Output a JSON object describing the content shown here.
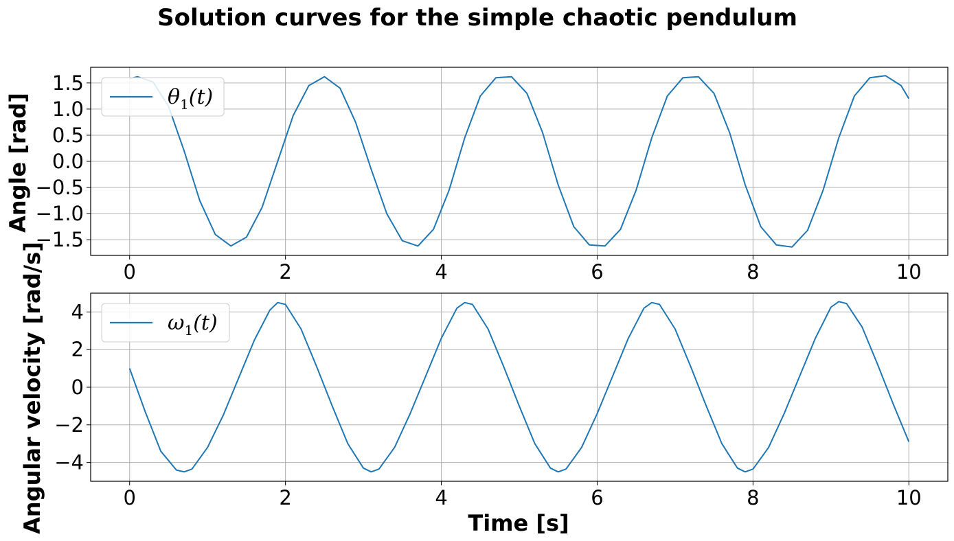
{
  "title": "Solution curves for the simple chaotic pendulum",
  "colors": {
    "line": "#1f77b4",
    "grid": "#b0b0b0"
  },
  "chart_data": [
    {
      "type": "line",
      "ylabel": "Angle [rad]",
      "xlabel": "",
      "xlim": [
        -0.5,
        10.5
      ],
      "ylim": [
        -1.8,
        1.8
      ],
      "xticks": [
        0,
        2,
        4,
        6,
        8,
        10
      ],
      "yticks": [
        -1.5,
        -1.0,
        -0.5,
        0.0,
        0.5,
        1.0,
        1.5
      ],
      "xtick_labels": [
        "0",
        "2",
        "4",
        "6",
        "8",
        "10"
      ],
      "ytick_labels": [
        "−1.5",
        "−1.0",
        "−0.5",
        "0.0",
        "0.5",
        "1.0",
        "1.5"
      ],
      "grid": true,
      "legend": "top-left",
      "series": [
        {
          "name": "θ1(t)",
          "symbol": "θ",
          "subscript": "1",
          "arg": "(t)",
          "x": [
            0,
            0.1,
            0.3,
            0.5,
            0.7,
            0.9,
            1.1,
            1.3,
            1.5,
            1.7,
            1.9,
            2.1,
            2.3,
            2.5,
            2.7,
            2.9,
            3.1,
            3.3,
            3.5,
            3.7,
            3.9,
            4.1,
            4.3,
            4.5,
            4.7,
            4.9,
            5.1,
            5.3,
            5.5,
            5.7,
            5.9,
            6.1,
            6.3,
            6.5,
            6.7,
            6.9,
            7.1,
            7.3,
            7.5,
            7.7,
            7.9,
            8.1,
            8.3,
            8.5,
            8.7,
            8.9,
            9.1,
            9.3,
            9.5,
            9.7,
            9.9,
            10.0
          ],
          "y": [
            1.58,
            1.62,
            1.52,
            1.05,
            0.2,
            -0.75,
            -1.4,
            -1.62,
            -1.45,
            -0.88,
            0.0,
            0.88,
            1.45,
            1.62,
            1.4,
            0.75,
            -0.15,
            -1.0,
            -1.52,
            -1.62,
            -1.3,
            -0.55,
            0.45,
            1.25,
            1.6,
            1.62,
            1.3,
            0.55,
            -0.45,
            -1.25,
            -1.6,
            -1.62,
            -1.3,
            -0.55,
            0.45,
            1.25,
            1.6,
            1.62,
            1.3,
            0.55,
            -0.45,
            -1.25,
            -1.6,
            -1.64,
            -1.32,
            -0.55,
            0.45,
            1.25,
            1.6,
            1.64,
            1.45,
            1.2
          ]
        }
      ]
    },
    {
      "type": "line",
      "ylabel": "Angular velocity [rad/s]",
      "xlabel": "Time [s]",
      "xlim": [
        -0.5,
        10.5
      ],
      "ylim": [
        -5.0,
        5.0
      ],
      "xticks": [
        0,
        2,
        4,
        6,
        8,
        10
      ],
      "yticks": [
        -4,
        -2,
        0,
        2,
        4
      ],
      "xtick_labels": [
        "0",
        "2",
        "4",
        "6",
        "8",
        "10"
      ],
      "ytick_labels": [
        "−4",
        "−2",
        "0",
        "2",
        "4"
      ],
      "grid": true,
      "legend": "top-left",
      "series": [
        {
          "name": "ω1(t)",
          "symbol": "ω",
          "subscript": "1",
          "arg": "(t)",
          "x": [
            0,
            0.2,
            0.4,
            0.6,
            0.7,
            0.8,
            1.0,
            1.2,
            1.4,
            1.6,
            1.8,
            1.9,
            2.0,
            2.2,
            2.4,
            2.6,
            2.8,
            3.0,
            3.1,
            3.2,
            3.4,
            3.6,
            3.8,
            4.0,
            4.2,
            4.3,
            4.4,
            4.6,
            4.8,
            5.0,
            5.2,
            5.4,
            5.5,
            5.6,
            5.8,
            6.0,
            6.2,
            6.4,
            6.6,
            6.7,
            6.8,
            7.0,
            7.2,
            7.4,
            7.6,
            7.8,
            7.9,
            8.0,
            8.2,
            8.4,
            8.6,
            8.8,
            9.0,
            9.1,
            9.2,
            9.4,
            9.6,
            9.8,
            10.0
          ],
          "y": [
            1.0,
            -1.3,
            -3.4,
            -4.4,
            -4.5,
            -4.35,
            -3.2,
            -1.5,
            0.5,
            2.5,
            4.1,
            4.5,
            4.4,
            3.1,
            1.1,
            -1.0,
            -3.0,
            -4.3,
            -4.5,
            -4.35,
            -3.2,
            -1.4,
            0.6,
            2.6,
            4.2,
            4.5,
            4.4,
            3.1,
            1.1,
            -1.0,
            -3.0,
            -4.3,
            -4.5,
            -4.35,
            -3.2,
            -1.4,
            0.6,
            2.6,
            4.2,
            4.5,
            4.4,
            3.1,
            1.1,
            -1.0,
            -3.0,
            -4.3,
            -4.5,
            -4.35,
            -3.2,
            -1.4,
            0.6,
            2.6,
            4.25,
            4.55,
            4.45,
            3.2,
            1.2,
            -0.9,
            -2.9
          ]
        }
      ]
    }
  ]
}
